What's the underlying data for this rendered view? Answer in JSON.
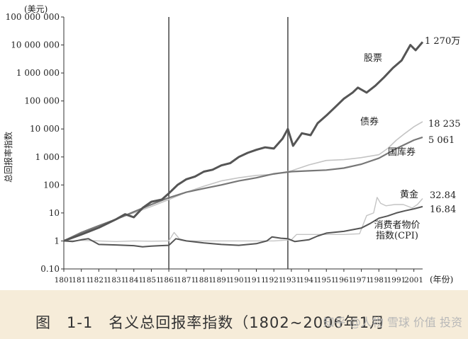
{
  "chart_data": {
    "type": "line",
    "title": "",
    "unit_label": "(美元)",
    "ylabel": "总回报率指数",
    "xlabel": "(年份)",
    "y_scale": "log",
    "ylim": [
      0.1,
      100000000
    ],
    "xlim": [
      1801,
      2006
    ],
    "y_ticks": [
      {
        "value": 100000000,
        "label": "100 000 000"
      },
      {
        "value": 10000000,
        "label": "10 000 000"
      },
      {
        "value": 1000000,
        "label": "1 000 000"
      },
      {
        "value": 100000,
        "label": "100 000"
      },
      {
        "value": 10000,
        "label": "10 000"
      },
      {
        "value": 1000,
        "label": "1 000"
      },
      {
        "value": 100,
        "label": "100"
      },
      {
        "value": 10,
        "label": "10"
      },
      {
        "value": 1,
        "label": "1"
      },
      {
        "value": 0.1,
        "label": "0.10"
      }
    ],
    "x_ticks": [
      1801,
      1811,
      1821,
      1831,
      1841,
      1851,
      1861,
      1871,
      1881,
      1891,
      1901,
      1911,
      1921,
      1931,
      1941,
      1951,
      1961,
      1971,
      1981,
      1991,
      2001
    ],
    "vertical_lines": [
      1861,
      1929
    ],
    "grid": false,
    "series": [
      {
        "name": "股票",
        "end_label": "1 270万",
        "color": "#555555",
        "points": [
          [
            1801,
            1
          ],
          [
            1811,
            1.7
          ],
          [
            1821,
            3
          ],
          [
            1831,
            6
          ],
          [
            1836,
            9
          ],
          [
            1841,
            7
          ],
          [
            1846,
            15
          ],
          [
            1851,
            25
          ],
          [
            1857,
            30
          ],
          [
            1861,
            50
          ],
          [
            1866,
            100
          ],
          [
            1871,
            160
          ],
          [
            1876,
            200
          ],
          [
            1881,
            300
          ],
          [
            1886,
            350
          ],
          [
            1891,
            500
          ],
          [
            1896,
            600
          ],
          [
            1901,
            1000
          ],
          [
            1906,
            1400
          ],
          [
            1911,
            1800
          ],
          [
            1916,
            2200
          ],
          [
            1921,
            2000
          ],
          [
            1926,
            4500
          ],
          [
            1929,
            10000
          ],
          [
            1932,
            2500
          ],
          [
            1937,
            7000
          ],
          [
            1942,
            6000
          ],
          [
            1946,
            16000
          ],
          [
            1951,
            30000
          ],
          [
            1956,
            60000
          ],
          [
            1961,
            120000
          ],
          [
            1966,
            200000
          ],
          [
            1969,
            300000
          ],
          [
            1974,
            200000
          ],
          [
            1979,
            350000
          ],
          [
            1984,
            700000
          ],
          [
            1989,
            1500000
          ],
          [
            1994,
            2800000
          ],
          [
            1999,
            10000000
          ],
          [
            2002,
            6500000
          ],
          [
            2006,
            12700000
          ]
        ]
      },
      {
        "name": "债券",
        "end_label": "18 235",
        "color": "#c4c4c4",
        "points": [
          [
            1801,
            1
          ],
          [
            1811,
            1.8
          ],
          [
            1821,
            3.5
          ],
          [
            1831,
            6
          ],
          [
            1841,
            10
          ],
          [
            1851,
            17
          ],
          [
            1861,
            30
          ],
          [
            1871,
            55
          ],
          [
            1881,
            90
          ],
          [
            1891,
            140
          ],
          [
            1901,
            180
          ],
          [
            1911,
            220
          ],
          [
            1921,
            240
          ],
          [
            1931,
            320
          ],
          [
            1941,
            520
          ],
          [
            1951,
            750
          ],
          [
            1961,
            800
          ],
          [
            1971,
            950
          ],
          [
            1981,
            1200
          ],
          [
            1986,
            2000
          ],
          [
            1991,
            4000
          ],
          [
            1996,
            7000
          ],
          [
            2001,
            12000
          ],
          [
            2006,
            18235
          ]
        ]
      },
      {
        "name": "国库券",
        "end_label": "5 061",
        "color": "#777777",
        "points": [
          [
            1801,
            1
          ],
          [
            1811,
            2
          ],
          [
            1821,
            3.5
          ],
          [
            1831,
            6
          ],
          [
            1841,
            11
          ],
          [
            1851,
            20
          ],
          [
            1861,
            35
          ],
          [
            1871,
            55
          ],
          [
            1881,
            75
          ],
          [
            1891,
            100
          ],
          [
            1901,
            140
          ],
          [
            1911,
            180
          ],
          [
            1921,
            250
          ],
          [
            1931,
            300
          ],
          [
            1941,
            320
          ],
          [
            1951,
            340
          ],
          [
            1961,
            400
          ],
          [
            1971,
            550
          ],
          [
            1981,
            900
          ],
          [
            1991,
            2000
          ],
          [
            2001,
            4000
          ],
          [
            2006,
            5061
          ]
        ]
      },
      {
        "name": "黄金",
        "end_label": "32.84",
        "color": "#c4c4c4",
        "points": [
          [
            1801,
            1
          ],
          [
            1811,
            1.05
          ],
          [
            1821,
            1
          ],
          [
            1831,
            0.95
          ],
          [
            1841,
            1
          ],
          [
            1851,
            0.98
          ],
          [
            1861,
            1
          ],
          [
            1864,
            2
          ],
          [
            1867,
            1.2
          ],
          [
            1871,
            1
          ],
          [
            1881,
            1
          ],
          [
            1891,
            1
          ],
          [
            1901,
            1
          ],
          [
            1911,
            1
          ],
          [
            1921,
            1
          ],
          [
            1931,
            1.1
          ],
          [
            1934,
            1.7
          ],
          [
            1941,
            1.7
          ],
          [
            1951,
            1.7
          ],
          [
            1961,
            1.7
          ],
          [
            1970,
            1.8
          ],
          [
            1974,
            8
          ],
          [
            1978,
            10
          ],
          [
            1980,
            36
          ],
          [
            1982,
            22
          ],
          [
            1985,
            18
          ],
          [
            1990,
            20
          ],
          [
            1995,
            20
          ],
          [
            2000,
            15
          ],
          [
            2003,
            20
          ],
          [
            2006,
            32.84
          ]
        ]
      },
      {
        "name": "消费者物价指数(CPI)",
        "end_label": "16.84",
        "label_lines": [
          "消费者物价",
          "指数(CPI)"
        ],
        "color": "#555555",
        "points": [
          [
            1801,
            1
          ],
          [
            1806,
            0.95
          ],
          [
            1811,
            1.1
          ],
          [
            1815,
            1.2
          ],
          [
            1818,
            0.95
          ],
          [
            1821,
            0.75
          ],
          [
            1831,
            0.72
          ],
          [
            1841,
            0.68
          ],
          [
            1846,
            0.62
          ],
          [
            1851,
            0.65
          ],
          [
            1856,
            0.68
          ],
          [
            1861,
            0.7
          ],
          [
            1865,
            1.2
          ],
          [
            1871,
            1
          ],
          [
            1881,
            0.85
          ],
          [
            1891,
            0.75
          ],
          [
            1901,
            0.7
          ],
          [
            1911,
            0.8
          ],
          [
            1917,
            1
          ],
          [
            1920,
            1.4
          ],
          [
            1925,
            1.25
          ],
          [
            1929,
            1.2
          ],
          [
            1933,
            0.95
          ],
          [
            1941,
            1.1
          ],
          [
            1946,
            1.5
          ],
          [
            1951,
            1.9
          ],
          [
            1961,
            2.2
          ],
          [
            1971,
            2.9
          ],
          [
            1976,
            4.2
          ],
          [
            1981,
            6.5
          ],
          [
            1986,
            7.8
          ],
          [
            1991,
            10
          ],
          [
            1996,
            12
          ],
          [
            2001,
            14
          ],
          [
            2006,
            16.84
          ]
        ]
      }
    ]
  },
  "caption": "图　1-1　名义总回报率指数（1802~2006年1月",
  "watermark": "知乎 @人物 雪球 价值 投资"
}
